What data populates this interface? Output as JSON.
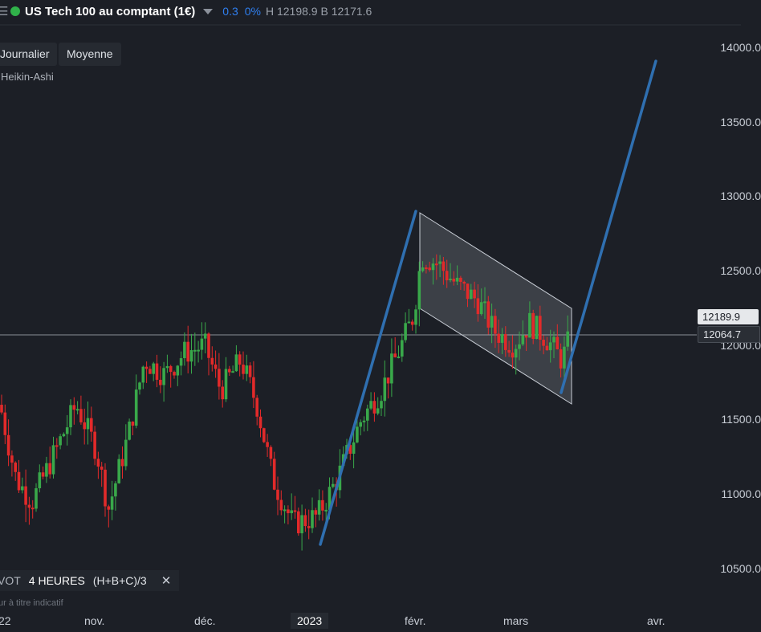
{
  "header": {
    "instrument": "US Tech 100 au comptant (1€)",
    "change": "0.3",
    "change_pct": "0%",
    "high_low": "H 12198.9 B 12171.6",
    "status_color": "#30b24a"
  },
  "chips": {
    "period": "Journalier",
    "moving_avg": "Moyenne",
    "candle_type": "Heikin-Ashi"
  },
  "price_tags": {
    "a": "12189.9",
    "b": "12064.7"
  },
  "bottom_bar": {
    "pivot": "VOT",
    "timeframe": "4 HEURES",
    "formula": "(H+B+C)/3",
    "close_icon": "close-icon"
  },
  "disclaimer": "ur à titre indicatif",
  "chart_data": {
    "type": "candlestick",
    "y_ticks": [
      "14000.0",
      "13500.0",
      "13000.0",
      "12500.0",
      "12000.0",
      "11500.0",
      "11000.0",
      "10500.0"
    ],
    "x_ticks": [
      "22",
      "nov.",
      "déc.",
      "2023",
      "févr.",
      "mars",
      "avr."
    ],
    "ylim": [
      10400,
      14100
    ],
    "up_color": "#39a84a",
    "down_color": "#e22a2a",
    "trendline_color": "#2f6fb0"
  }
}
